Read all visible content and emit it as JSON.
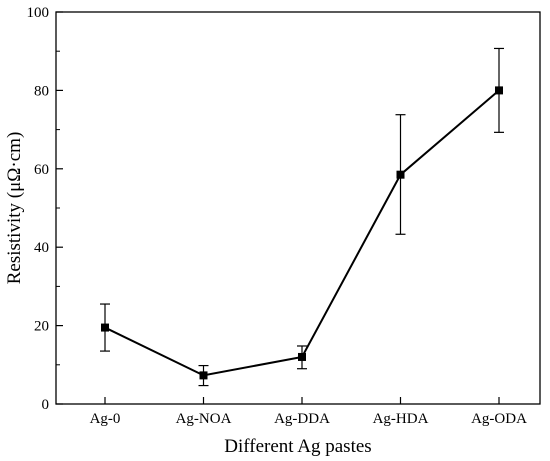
{
  "chart_data": {
    "type": "line",
    "title": "",
    "xlabel": "Different Ag pastes",
    "ylabel": "Resistivity (μΩ·cm)",
    "ylim": [
      0,
      100
    ],
    "yticks": [
      0,
      20,
      40,
      60,
      80,
      100
    ],
    "grid": false,
    "legend": "none",
    "categories": [
      "Ag-0",
      "Ag-NOA",
      "Ag-DDA",
      "Ag-HDA",
      "Ag-ODA"
    ],
    "series": [
      {
        "values": [
          19.5,
          7.3,
          12.0,
          58.5,
          80.0
        ],
        "error_low": [
          13.5,
          4.7,
          9.0,
          43.3,
          69.3
        ],
        "error_high": [
          25.5,
          9.8,
          14.8,
          73.8,
          90.7
        ],
        "marker": "square",
        "color": "#000000"
      }
    ]
  }
}
